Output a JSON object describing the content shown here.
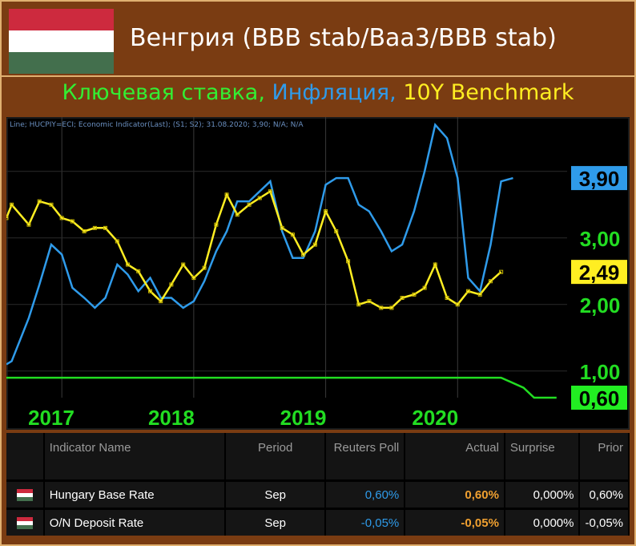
{
  "header": {
    "title": "Венгрия (BBB stab/Baa3/BBB stab)",
    "flag_colors": [
      "#cd2a3e",
      "#ffffff",
      "#436f4d"
    ]
  },
  "subtitle": {
    "part1": "Ключевая ставка,",
    "part2": "Инфляция,",
    "part3": "10Y Benchmark",
    "colors": [
      "#33ee33",
      "#2f9bea",
      "#ffee22"
    ]
  },
  "chart_data": {
    "type": "line",
    "info_line": "Line; HUCPIY=ECI; Economic Indicator(Last); (S1; S2); 31.08.2020; 3,90; N/A; N/A",
    "x_tick_labels": [
      "2017",
      "2018",
      "2019",
      "2020"
    ],
    "y_tick_labels": [
      "1,00",
      "2,00",
      "3,00"
    ],
    "ylim": [
      0.6,
      4.6
    ],
    "series": [
      {
        "name": "Ключевая ставка",
        "color": "#22dd22",
        "last_label": "0,60",
        "points": [
          [
            2016.58,
            0.9
          ],
          [
            2017.0,
            0.9
          ],
          [
            2018.0,
            0.9
          ],
          [
            2019.0,
            0.9
          ],
          [
            2020.0,
            0.9
          ],
          [
            2020.33,
            0.9
          ],
          [
            2020.5,
            0.75
          ],
          [
            2020.58,
            0.6
          ],
          [
            2020.67,
            0.6
          ],
          [
            2020.75,
            0.6
          ]
        ]
      },
      {
        "name": "Инфляция",
        "color": "#2f9bea",
        "last_label": "3,90",
        "points": [
          [
            2016.58,
            1.1
          ],
          [
            2016.62,
            1.15
          ],
          [
            2016.75,
            1.8
          ],
          [
            2016.83,
            2.3
          ],
          [
            2016.92,
            2.9
          ],
          [
            2017.0,
            2.75
          ],
          [
            2017.08,
            2.25
          ],
          [
            2017.17,
            2.1
          ],
          [
            2017.25,
            1.95
          ],
          [
            2017.33,
            2.1
          ],
          [
            2017.42,
            2.6
          ],
          [
            2017.5,
            2.45
          ],
          [
            2017.58,
            2.2
          ],
          [
            2017.67,
            2.4
          ],
          [
            2017.75,
            2.1
          ],
          [
            2017.83,
            2.1
          ],
          [
            2017.92,
            1.95
          ],
          [
            2018.0,
            2.05
          ],
          [
            2018.08,
            2.35
          ],
          [
            2018.17,
            2.8
          ],
          [
            2018.25,
            3.1
          ],
          [
            2018.33,
            3.55
          ],
          [
            2018.42,
            3.55
          ],
          [
            2018.5,
            3.7
          ],
          [
            2018.58,
            3.85
          ],
          [
            2018.67,
            3.1
          ],
          [
            2018.75,
            2.7
          ],
          [
            2018.83,
            2.7
          ],
          [
            2018.92,
            3.1
          ],
          [
            2019.0,
            3.8
          ],
          [
            2019.08,
            3.9
          ],
          [
            2019.17,
            3.9
          ],
          [
            2019.25,
            3.5
          ],
          [
            2019.33,
            3.4
          ],
          [
            2019.42,
            3.1
          ],
          [
            2019.5,
            2.8
          ],
          [
            2019.58,
            2.9
          ],
          [
            2019.67,
            3.4
          ],
          [
            2019.75,
            4.0
          ],
          [
            2019.83,
            4.7
          ],
          [
            2019.92,
            4.5
          ],
          [
            2020.0,
            3.9
          ],
          [
            2020.08,
            2.4
          ],
          [
            2020.17,
            2.2
          ],
          [
            2020.25,
            2.9
          ],
          [
            2020.33,
            3.85
          ],
          [
            2020.42,
            3.9
          ]
        ]
      },
      {
        "name": "10Y Benchmark",
        "color": "#ffee22",
        "last_label": "2,49",
        "points": [
          [
            2016.58,
            3.3
          ],
          [
            2016.62,
            3.5
          ],
          [
            2016.75,
            3.2
          ],
          [
            2016.83,
            3.55
          ],
          [
            2016.92,
            3.5
          ],
          [
            2017.0,
            3.3
          ],
          [
            2017.08,
            3.25
          ],
          [
            2017.17,
            3.1
          ],
          [
            2017.25,
            3.15
          ],
          [
            2017.33,
            3.15
          ],
          [
            2017.42,
            2.95
          ],
          [
            2017.5,
            2.6
          ],
          [
            2017.58,
            2.5
          ],
          [
            2017.67,
            2.2
          ],
          [
            2017.75,
            2.05
          ],
          [
            2017.83,
            2.3
          ],
          [
            2017.92,
            2.6
          ],
          [
            2018.0,
            2.4
          ],
          [
            2018.08,
            2.55
          ],
          [
            2018.17,
            3.2
          ],
          [
            2018.25,
            3.65
          ],
          [
            2018.33,
            3.35
          ],
          [
            2018.42,
            3.5
          ],
          [
            2018.5,
            3.6
          ],
          [
            2018.58,
            3.7
          ],
          [
            2018.67,
            3.15
          ],
          [
            2018.75,
            3.05
          ],
          [
            2018.83,
            2.75
          ],
          [
            2018.92,
            2.9
          ],
          [
            2019.0,
            3.4
          ],
          [
            2019.08,
            3.1
          ],
          [
            2019.17,
            2.65
          ],
          [
            2019.25,
            2.0
          ],
          [
            2019.33,
            2.05
          ],
          [
            2019.42,
            1.95
          ],
          [
            2019.5,
            1.95
          ],
          [
            2019.58,
            2.1
          ],
          [
            2019.67,
            2.15
          ],
          [
            2019.75,
            2.25
          ],
          [
            2019.83,
            2.6
          ],
          [
            2019.92,
            2.1
          ],
          [
            2020.0,
            2.0
          ],
          [
            2020.08,
            2.2
          ],
          [
            2020.17,
            2.15
          ],
          [
            2020.25,
            2.35
          ],
          [
            2020.33,
            2.49
          ]
        ]
      }
    ],
    "grid": true
  },
  "table": {
    "headers": [
      "Indicator Name",
      "Period",
      "Reuters Poll",
      "Actual",
      "Surprise",
      "Prior"
    ],
    "rows": [
      {
        "name": "Hungary Base Rate",
        "period": "Sep",
        "poll": "0,60%",
        "actual": "0,60%",
        "surprise": "0,000%",
        "prior": "0,60%"
      },
      {
        "name": "O/N Deposit Rate",
        "period": "Sep",
        "poll": "-0,05%",
        "actual": "-0,05%",
        "surprise": "0,000%",
        "prior": "-0,05%"
      }
    ]
  }
}
